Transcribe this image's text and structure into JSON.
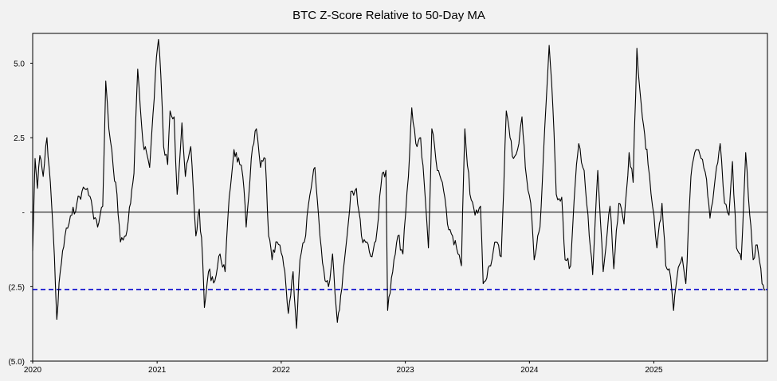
{
  "chart_data": {
    "type": "line",
    "title": "BTC Z-Score Relative to 50-Day MA",
    "xlabel": "",
    "ylabel": "",
    "x_range": [
      "2020-01-01",
      "2025-12-01"
    ],
    "ylim": [
      -5.0,
      6.0
    ],
    "y_ticks": [
      {
        "value": 5.0,
        "label": "5.0"
      },
      {
        "value": 2.5,
        "label": "2.5"
      },
      {
        "value": 0,
        "label": "-"
      },
      {
        "value": -2.5,
        "label": "(2.5)"
      },
      {
        "value": -5.0,
        "label": "(5.0)"
      }
    ],
    "x_ticks": [
      {
        "value": "2020-01-01",
        "label": "2020"
      },
      {
        "value": "2021-01-01",
        "label": "2021"
      },
      {
        "value": "2022-01-01",
        "label": "2022"
      },
      {
        "value": "2023-01-01",
        "label": "2023"
      },
      {
        "value": "2024-01-01",
        "label": "2024"
      },
      {
        "value": "2025-01-01",
        "label": "2025"
      }
    ],
    "grid": false,
    "legend": "none",
    "colors": {
      "line": "#000000",
      "zero_line": "#000000",
      "threshold_line": "#0000cc",
      "background": "#f2f2f2"
    },
    "reference_lines": [
      {
        "y": 0,
        "style": "solid",
        "color": "#000000"
      },
      {
        "y": -2.6,
        "style": "dashed",
        "color": "#0000cc"
      }
    ],
    "series": [
      {
        "values": [
          [
            "2020-01-01",
            -1.3
          ],
          [
            "2020-01-08",
            1.8
          ],
          [
            "2020-01-15",
            0.8
          ],
          [
            "2020-01-22",
            1.9
          ],
          [
            "2020-02-01",
            1.2
          ],
          [
            "2020-02-12",
            2.5
          ],
          [
            "2020-02-22",
            1.0
          ],
          [
            "2020-03-05",
            -1.5
          ],
          [
            "2020-03-12",
            -3.6
          ],
          [
            "2020-03-22",
            -2.0
          ],
          [
            "2020-04-05",
            -0.8
          ],
          [
            "2020-04-25",
            -0.1
          ],
          [
            "2020-05-10",
            0.3
          ],
          [
            "2020-05-25",
            0.7
          ],
          [
            "2020-06-10",
            0.8
          ],
          [
            "2020-06-25",
            0.1
          ],
          [
            "2020-07-10",
            -0.5
          ],
          [
            "2020-07-25",
            0.2
          ],
          [
            "2020-08-03",
            4.4
          ],
          [
            "2020-08-12",
            2.8
          ],
          [
            "2020-08-25",
            1.5
          ],
          [
            "2020-09-05",
            0.6
          ],
          [
            "2020-09-15",
            -1.0
          ],
          [
            "2020-10-01",
            -0.8
          ],
          [
            "2020-10-15",
            0.3
          ],
          [
            "2020-10-25",
            1.3
          ],
          [
            "2020-11-05",
            4.8
          ],
          [
            "2020-11-20",
            2.4
          ],
          [
            "2020-12-01",
            2.0
          ],
          [
            "2020-12-10",
            1.5
          ],
          [
            "2020-12-20",
            3.3
          ],
          [
            "2020-12-30",
            5.2
          ],
          [
            "2021-01-05",
            5.8
          ],
          [
            "2021-01-12",
            4.6
          ],
          [
            "2021-01-20",
            2.2
          ],
          [
            "2021-02-01",
            1.6
          ],
          [
            "2021-02-08",
            3.4
          ],
          [
            "2021-02-20",
            3.2
          ],
          [
            "2021-03-01",
            0.6
          ],
          [
            "2021-03-15",
            3.0
          ],
          [
            "2021-03-25",
            1.2
          ],
          [
            "2021-04-10",
            2.2
          ],
          [
            "2021-04-25",
            -0.8
          ],
          [
            "2021-05-05",
            0.1
          ],
          [
            "2021-05-15",
            -1.6
          ],
          [
            "2021-05-20",
            -3.2
          ],
          [
            "2021-06-01",
            -2.0
          ],
          [
            "2021-06-20",
            -2.3
          ],
          [
            "2021-07-05",
            -1.4
          ],
          [
            "2021-07-20",
            -2.0
          ],
          [
            "2021-08-01",
            0.5
          ],
          [
            "2021-08-15",
            2.1
          ],
          [
            "2021-09-01",
            1.6
          ],
          [
            "2021-09-10",
            1.2
          ],
          [
            "2021-09-20",
            -0.5
          ],
          [
            "2021-10-05",
            1.8
          ],
          [
            "2021-10-20",
            2.8
          ],
          [
            "2021-11-01",
            1.5
          ],
          [
            "2021-11-15",
            1.8
          ],
          [
            "2021-11-25",
            -0.8
          ],
          [
            "2021-12-05",
            -1.6
          ],
          [
            "2021-12-20",
            -1.0
          ],
          [
            "2022-01-05",
            -1.5
          ],
          [
            "2022-01-15",
            -2.5
          ],
          [
            "2022-01-22",
            -3.4
          ],
          [
            "2022-02-05",
            -2.0
          ],
          [
            "2022-02-15",
            -3.9
          ],
          [
            "2022-02-25",
            -1.6
          ],
          [
            "2022-03-10",
            -1.0
          ],
          [
            "2022-03-30",
            0.8
          ],
          [
            "2022-04-10",
            1.5
          ],
          [
            "2022-04-25",
            -0.8
          ],
          [
            "2022-05-10",
            -2.3
          ],
          [
            "2022-05-20",
            -2.5
          ],
          [
            "2022-06-01",
            -1.4
          ],
          [
            "2022-06-15",
            -3.7
          ],
          [
            "2022-06-25",
            -2.8
          ],
          [
            "2022-07-10",
            -1.2
          ],
          [
            "2022-07-25",
            0.7
          ],
          [
            "2022-08-10",
            0.8
          ],
          [
            "2022-08-25",
            -0.8
          ],
          [
            "2022-09-10",
            -1.0
          ],
          [
            "2022-09-25",
            -1.5
          ],
          [
            "2022-10-10",
            -0.6
          ],
          [
            "2022-10-25",
            1.3
          ],
          [
            "2022-11-05",
            1.4
          ],
          [
            "2022-11-10",
            -3.3
          ],
          [
            "2022-11-25",
            -2.0
          ],
          [
            "2022-12-10",
            -0.8
          ],
          [
            "2022-12-25",
            -1.4
          ],
          [
            "2023-01-10",
            1.2
          ],
          [
            "2023-01-20",
            3.5
          ],
          [
            "2023-02-01",
            2.3
          ],
          [
            "2023-02-15",
            2.5
          ],
          [
            "2023-03-01",
            0.4
          ],
          [
            "2023-03-10",
            -1.2
          ],
          [
            "2023-03-20",
            2.8
          ],
          [
            "2023-04-05",
            1.4
          ],
          [
            "2023-04-20",
            1.0
          ],
          [
            "2023-05-05",
            -0.4
          ],
          [
            "2023-05-20",
            -0.8
          ],
          [
            "2023-06-05",
            -1.4
          ],
          [
            "2023-06-15",
            -1.8
          ],
          [
            "2023-06-25",
            2.8
          ],
          [
            "2023-07-10",
            0.6
          ],
          [
            "2023-07-25",
            -0.1
          ],
          [
            "2023-08-10",
            0.2
          ],
          [
            "2023-08-18",
            -2.4
          ],
          [
            "2023-09-05",
            -1.8
          ],
          [
            "2023-09-25",
            -1.0
          ],
          [
            "2023-10-10",
            -1.5
          ],
          [
            "2023-10-25",
            3.4
          ],
          [
            "2023-11-05",
            2.5
          ],
          [
            "2023-11-15",
            1.8
          ],
          [
            "2023-12-01",
            2.3
          ],
          [
            "2023-12-10",
            3.2
          ],
          [
            "2023-12-20",
            1.5
          ],
          [
            "2024-01-05",
            0.3
          ],
          [
            "2024-01-15",
            -1.6
          ],
          [
            "2024-02-01",
            -0.5
          ],
          [
            "2024-02-15",
            2.8
          ],
          [
            "2024-02-28",
            5.6
          ],
          [
            "2024-03-10",
            3.5
          ],
          [
            "2024-03-20",
            0.6
          ],
          [
            "2024-04-05",
            0.5
          ],
          [
            "2024-04-15",
            -1.6
          ],
          [
            "2024-05-01",
            -1.8
          ],
          [
            "2024-05-15",
            1.0
          ],
          [
            "2024-05-25",
            2.3
          ],
          [
            "2024-06-10",
            1.4
          ],
          [
            "2024-06-25",
            -0.8
          ],
          [
            "2024-07-05",
            -2.1
          ],
          [
            "2024-07-20",
            1.4
          ],
          [
            "2024-08-05",
            -2.0
          ],
          [
            "2024-08-25",
            0.2
          ],
          [
            "2024-09-05",
            -1.9
          ],
          [
            "2024-09-20",
            0.3
          ],
          [
            "2024-10-05",
            -0.4
          ],
          [
            "2024-10-20",
            2.0
          ],
          [
            "2024-11-01",
            1.0
          ],
          [
            "2024-11-12",
            5.5
          ],
          [
            "2024-11-25",
            3.6
          ],
          [
            "2024-12-05",
            2.6
          ],
          [
            "2024-12-15",
            1.6
          ],
          [
            "2024-12-28",
            0.2
          ],
          [
            "2025-01-10",
            -1.2
          ],
          [
            "2025-01-25",
            0.3
          ],
          [
            "2025-02-05",
            -1.8
          ],
          [
            "2025-02-15",
            -1.9
          ],
          [
            "2025-02-28",
            -3.3
          ],
          [
            "2025-03-10",
            -2.2
          ],
          [
            "2025-03-25",
            -1.5
          ],
          [
            "2025-04-05",
            -2.4
          ],
          [
            "2025-04-20",
            1.2
          ],
          [
            "2025-05-05",
            2.1
          ],
          [
            "2025-05-20",
            1.8
          ],
          [
            "2025-06-05",
            1.1
          ],
          [
            "2025-06-15",
            -0.2
          ],
          [
            "2025-07-01",
            1.2
          ],
          [
            "2025-07-15",
            2.3
          ],
          [
            "2025-07-28",
            0.3
          ],
          [
            "2025-08-10",
            -0.1
          ],
          [
            "2025-08-20",
            1.7
          ],
          [
            "2025-09-01",
            -1.2
          ],
          [
            "2025-09-15",
            -1.6
          ],
          [
            "2025-09-28",
            2.0
          ],
          [
            "2025-10-10",
            -0.1
          ],
          [
            "2025-10-20",
            -1.6
          ],
          [
            "2025-11-01",
            -1.1
          ],
          [
            "2025-11-15",
            -2.4
          ],
          [
            "2025-11-25",
            -2.6
          ]
        ]
      }
    ]
  }
}
